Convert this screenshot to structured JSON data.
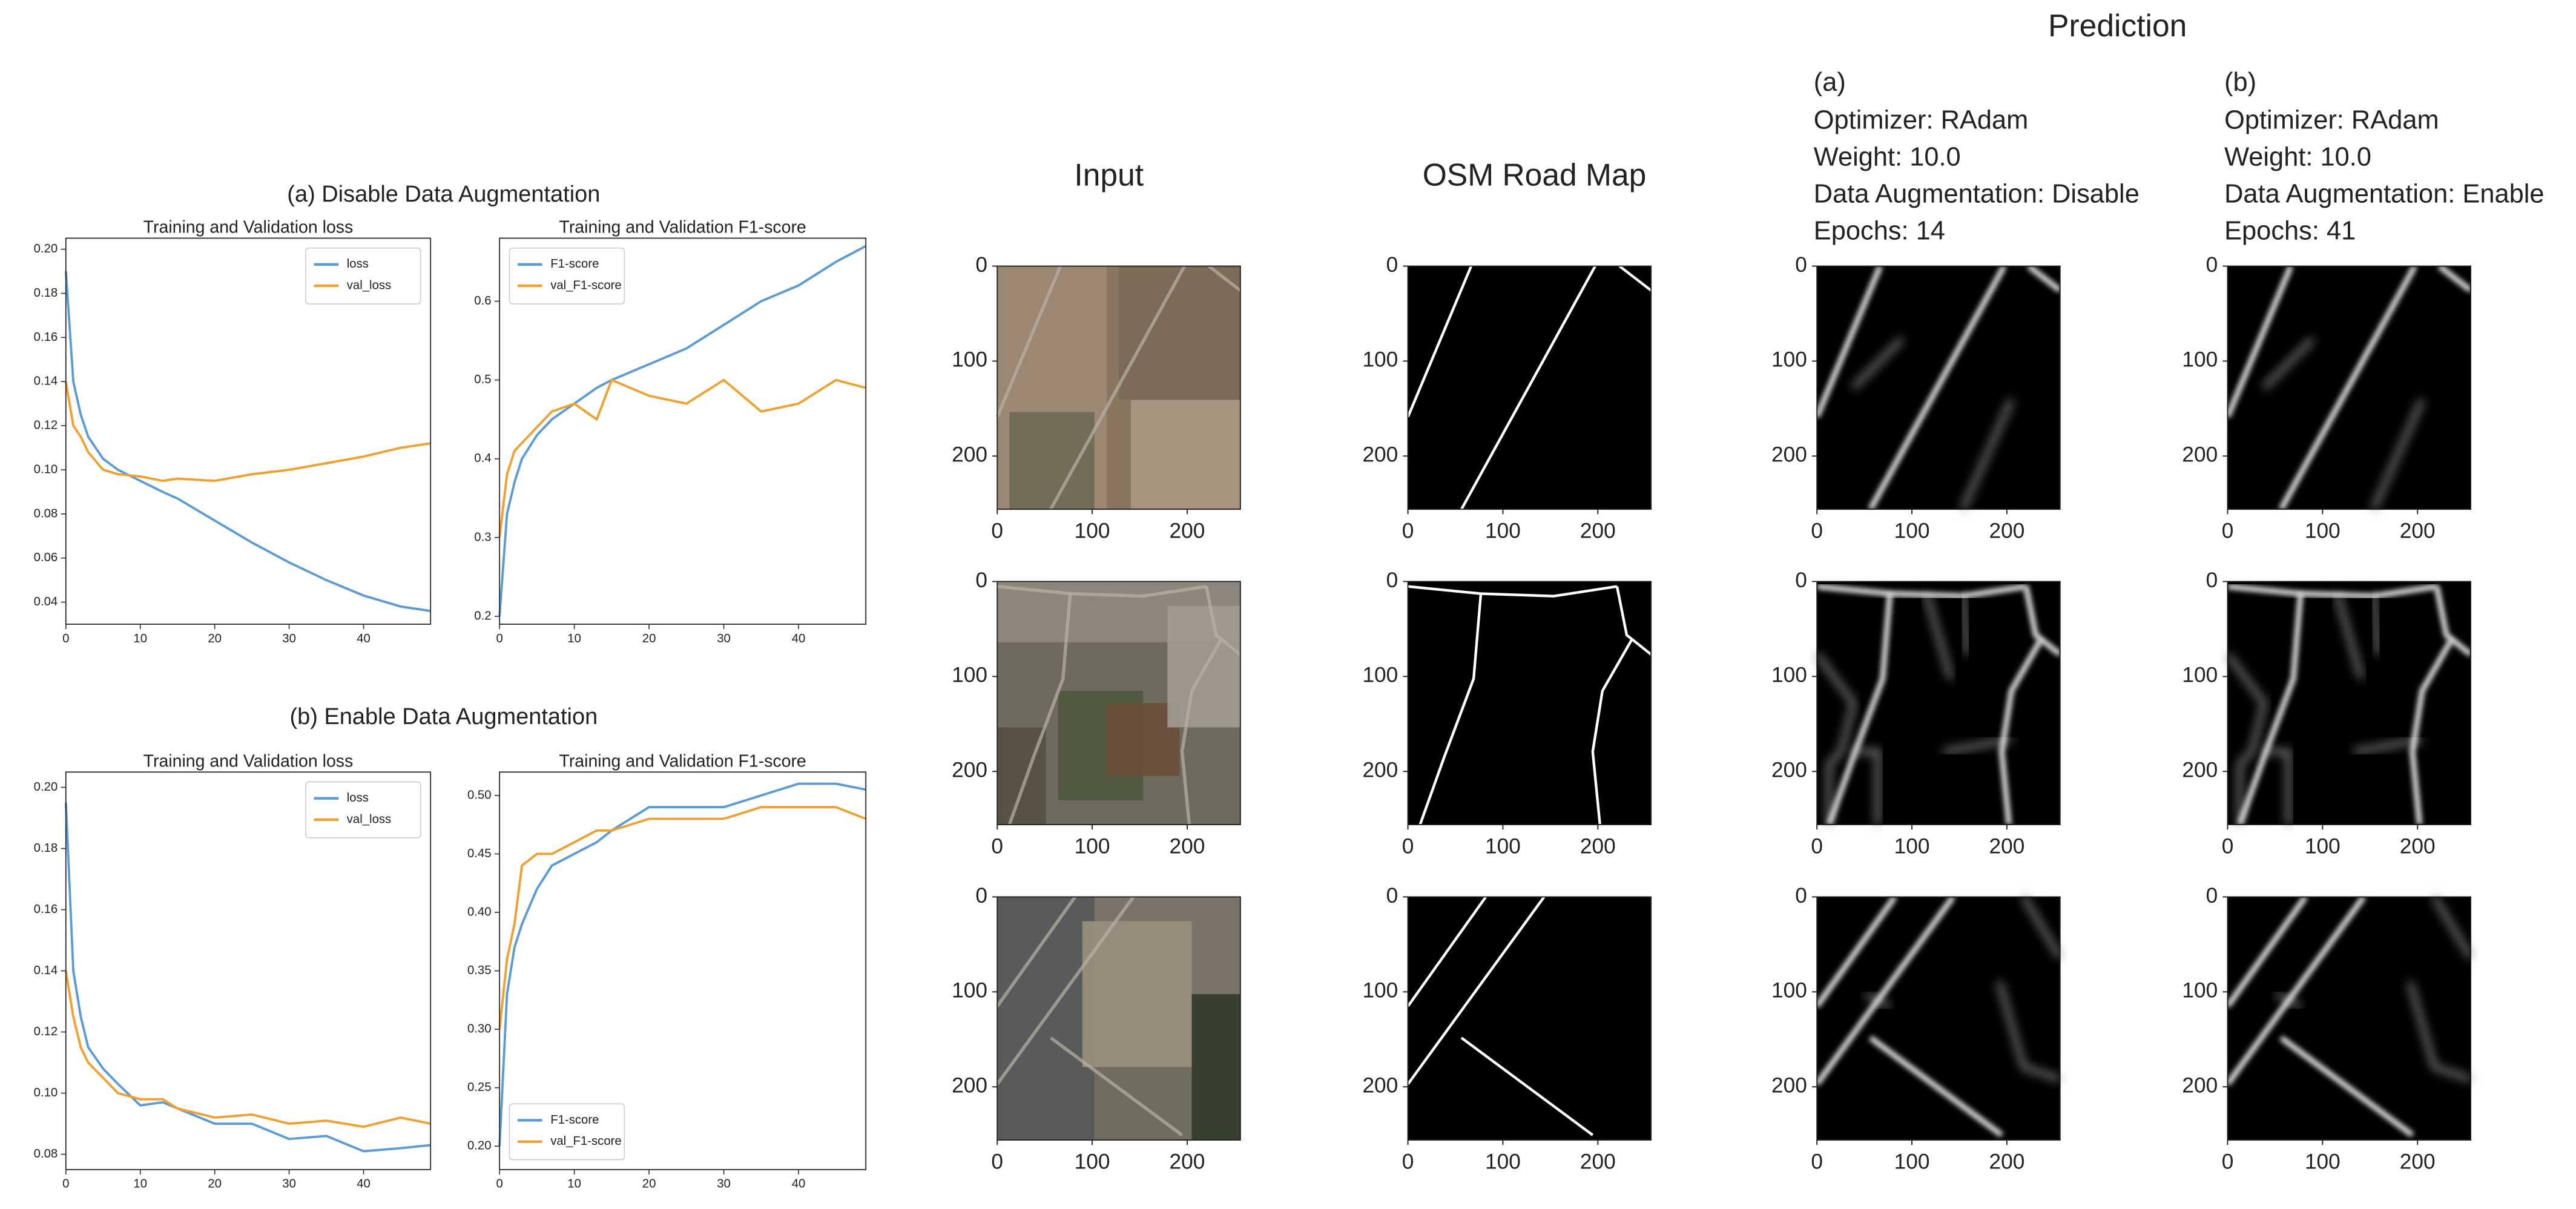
{
  "groups": [
    "(a) Disable Data Augmentation",
    "(b) Enable Data Augmentation"
  ],
  "chart_data": [
    {
      "type": "line",
      "title": "Training and Validation loss",
      "legend": "upper right",
      "x": [
        0,
        1,
        2,
        3,
        5,
        7,
        10,
        13,
        15,
        20,
        25,
        30,
        35,
        40,
        45,
        49
      ],
      "xlim": [
        0,
        49
      ],
      "xticks": [
        0,
        10,
        20,
        30,
        40
      ],
      "ylim": [
        0.03,
        0.205
      ],
      "yticks": [
        0.04,
        0.06,
        0.08,
        {
          "value": 0.1,
          "label": "0.10"
        },
        0.12,
        0.14,
        0.16,
        0.18,
        {
          "value": 0.2,
          "label": "0.20"
        }
      ],
      "series": [
        {
          "name": "loss",
          "color": "#5b9bd5",
          "values": [
            0.19,
            0.14,
            0.125,
            0.115,
            0.105,
            0.1,
            0.095,
            0.09,
            0.087,
            0.077,
            0.067,
            0.058,
            0.05,
            0.043,
            0.038,
            0.036
          ]
        },
        {
          "name": "val_loss",
          "color": "#f0a030",
          "values": [
            0.14,
            0.12,
            0.115,
            0.108,
            0.1,
            0.098,
            0.097,
            0.095,
            0.096,
            0.095,
            0.098,
            0.1,
            0.103,
            0.106,
            0.11,
            0.112
          ]
        }
      ]
    },
    {
      "type": "line",
      "title": "Training and Validation F1-score",
      "legend": "upper left",
      "x": [
        0,
        1,
        2,
        3,
        5,
        7,
        10,
        13,
        15,
        20,
        25,
        30,
        35,
        40,
        45,
        49
      ],
      "xlim": [
        0,
        49
      ],
      "xticks": [
        0,
        10,
        20,
        30,
        40
      ],
      "ylim": [
        0.19,
        0.68
      ],
      "yticks": [
        0.2,
        0.3,
        0.4,
        0.5,
        0.6
      ],
      "series": [
        {
          "name": "F1-score",
          "color": "#5b9bd5",
          "values": [
            0.2,
            0.33,
            0.37,
            0.4,
            0.43,
            0.45,
            0.47,
            0.49,
            0.5,
            0.52,
            0.54,
            0.57,
            0.6,
            0.62,
            0.65,
            0.67
          ]
        },
        {
          "name": "val_F1-score",
          "color": "#f0a030",
          "values": [
            0.3,
            0.38,
            0.41,
            0.42,
            0.44,
            0.46,
            0.47,
            0.45,
            0.5,
            0.48,
            0.47,
            0.5,
            0.46,
            0.47,
            0.5,
            0.49
          ]
        }
      ]
    },
    {
      "type": "line",
      "title": "Training and Validation loss",
      "legend": "upper right",
      "x": [
        0,
        1,
        2,
        3,
        5,
        7,
        10,
        13,
        15,
        20,
        25,
        30,
        35,
        40,
        45,
        49
      ],
      "xlim": [
        0,
        49
      ],
      "xticks": [
        0,
        10,
        20,
        30,
        40
      ],
      "ylim": [
        0.075,
        0.205
      ],
      "yticks": [
        0.08,
        {
          "value": 0.1,
          "label": "0.10"
        },
        0.12,
        0.14,
        0.16,
        0.18,
        {
          "value": 0.2,
          "label": "0.20"
        }
      ],
      "series": [
        {
          "name": "loss",
          "color": "#5b9bd5",
          "values": [
            0.195,
            0.14,
            0.125,
            0.115,
            0.108,
            0.103,
            0.096,
            0.097,
            0.095,
            0.09,
            0.09,
            0.085,
            0.086,
            0.081,
            0.082,
            0.083
          ]
        },
        {
          "name": "val_loss",
          "color": "#f0a030",
          "values": [
            0.14,
            0.125,
            0.115,
            0.11,
            0.105,
            0.1,
            0.098,
            0.098,
            0.095,
            0.092,
            0.093,
            0.09,
            0.091,
            0.089,
            0.092,
            0.09
          ]
        }
      ]
    },
    {
      "type": "line",
      "title": "Training and Validation F1-score",
      "legend": "lower left",
      "x": [
        0,
        1,
        2,
        3,
        5,
        7,
        10,
        13,
        15,
        20,
        25,
        30,
        35,
        40,
        45,
        49
      ],
      "xlim": [
        0,
        49
      ],
      "xticks": [
        0,
        10,
        20,
        30,
        40
      ],
      "ylim": [
        0.18,
        0.52
      ],
      "yticks": [
        {
          "value": 0.2,
          "label": "0.20"
        },
        0.25,
        {
          "value": 0.3,
          "label": "0.30"
        },
        0.35,
        {
          "value": 0.4,
          "label": "0.40"
        },
        0.45,
        {
          "value": 0.5,
          "label": "0.50"
        }
      ],
      "series": [
        {
          "name": "F1-score",
          "color": "#5b9bd5",
          "values": [
            0.2,
            0.33,
            0.37,
            0.39,
            0.42,
            0.44,
            0.45,
            0.46,
            0.47,
            0.49,
            0.49,
            0.49,
            0.5,
            0.51,
            0.51,
            0.505
          ]
        },
        {
          "name": "val_F1-score",
          "color": "#f0a030",
          "values": [
            0.3,
            0.36,
            0.39,
            0.44,
            0.45,
            0.45,
            0.46,
            0.47,
            0.47,
            0.48,
            0.48,
            0.48,
            0.49,
            0.49,
            0.49,
            0.48
          ]
        }
      ]
    }
  ],
  "images": {
    "xlim": [
      0,
      256
    ],
    "ylim": [
      256,
      0
    ],
    "xticks": [
      0,
      100,
      200
    ],
    "yticks": [
      0,
      100,
      200
    ],
    "columns": [
      {
        "title": "Input"
      },
      {
        "title": "OSM Road Map"
      }
    ],
    "prediction": {
      "title": "Prediction",
      "columns": [
        {
          "label": "(a)",
          "lines": [
            "Optimizer: RAdam",
            "Weight: 10.0",
            "Data Augmentation: Disable",
            "Epochs: 14"
          ]
        },
        {
          "label": "(b)",
          "lines": [
            "Optimizer: RAdam",
            "Weight: 10.0",
            "Data Augmentation: Enable",
            "Epochs: 41"
          ]
        }
      ]
    }
  }
}
